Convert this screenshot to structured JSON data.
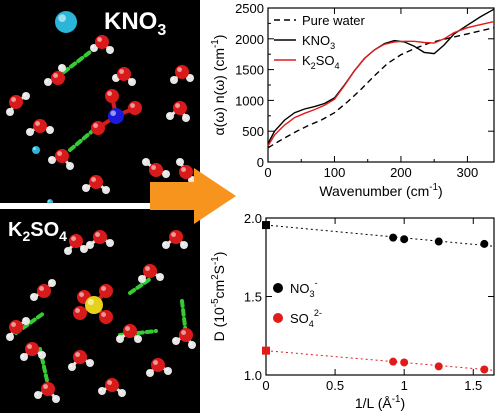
{
  "panels": {
    "top_label_main": "KNO",
    "top_label_sub": "3",
    "bottom_label_a": "K",
    "bottom_label_a_sub": "2",
    "bottom_label_b": "SO",
    "bottom_label_b_sub": "4"
  },
  "colors": {
    "oxygen": "#d91a1a",
    "hydrogen": "#e6e6e6",
    "nitrogen": "#1a1ad9",
    "sulfur": "#e6d21a",
    "potassium": "#2bb5d9",
    "hbond": "#33cc33",
    "arrow": "#f7941d",
    "pure_water": "#000000",
    "kno3": "#000000",
    "k2so4": "#e31a1a",
    "no3_points": "#000000",
    "so4_points": "#e31a1a"
  },
  "chart_data": [
    {
      "type": "line",
      "xlabel": "Wavenumber (cm",
      "xlabel_sup": "-1",
      "xlabel_end": ")",
      "ylabel": "α(ω) n(ω) (cm",
      "ylabel_sup": "-1",
      "ylabel_end": ")",
      "xlim": [
        0,
        340
      ],
      "ylim": [
        0,
        2500
      ],
      "xticks": [
        "0",
        "100",
        "200",
        "300"
      ],
      "yticks": [
        "0",
        "500",
        "1000",
        "1500",
        "2000",
        "2500"
      ],
      "legend_position": "top-left",
      "series": [
        {
          "name": "Pure water",
          "legend_text": "Pure water",
          "style": "dashed",
          "color": "#000000",
          "x": [
            0,
            20,
            40,
            60,
            80,
            100,
            120,
            140,
            160,
            180,
            200,
            220,
            240,
            260,
            280,
            300,
            320,
            340
          ],
          "y": [
            230,
            360,
            480,
            590,
            680,
            800,
            980,
            1180,
            1400,
            1600,
            1740,
            1840,
            1920,
            1980,
            2030,
            2080,
            2130,
            2180
          ]
        },
        {
          "name": "KNO3",
          "legend_text": "KNO",
          "legend_sub": "3",
          "style": "solid",
          "color": "#000000",
          "x": [
            0,
            10,
            25,
            40,
            55,
            70,
            85,
            100,
            115,
            130,
            145,
            160,
            175,
            190,
            205,
            220,
            235,
            250,
            265,
            280,
            300,
            320,
            340
          ],
          "y": [
            300,
            500,
            680,
            800,
            860,
            900,
            950,
            1040,
            1250,
            1480,
            1680,
            1820,
            1920,
            1970,
            1950,
            1880,
            1780,
            1760,
            1900,
            2080,
            2220,
            2360,
            2480
          ]
        },
        {
          "name": "K2SO4",
          "legend_text": "K",
          "legend_sub": "2",
          "legend_text2": "SO",
          "legend_sub2": "4",
          "style": "solid",
          "color": "#e31a1a",
          "x": [
            0,
            10,
            25,
            40,
            55,
            70,
            85,
            100,
            115,
            130,
            145,
            160,
            175,
            190,
            205,
            220,
            235,
            250,
            265,
            280,
            300,
            320,
            340
          ],
          "y": [
            260,
            440,
            600,
            720,
            790,
            850,
            920,
            1020,
            1240,
            1480,
            1680,
            1820,
            1910,
            1950,
            1960,
            1960,
            1940,
            1930,
            2000,
            2100,
            2180,
            2230,
            2280
          ]
        }
      ]
    },
    {
      "type": "scatter",
      "xlabel": "1/L (Å",
      "xlabel_sup": "-1",
      "xlabel_end": ")",
      "ylabel": "D (10",
      "ylabel_sup1": "-5",
      "ylabel_mid": "cm",
      "ylabel_sup2": "2",
      "ylabel_mid2": "S",
      "ylabel_sup3": "-1",
      "ylabel_end": ")",
      "xlim": [
        0,
        1.65
      ],
      "ylim": [
        1.0,
        2.0
      ],
      "xticks": [
        "0",
        "0.5",
        "1",
        "1.5"
      ],
      "yticks": [
        "1.0",
        "1.5",
        "2.0"
      ],
      "legend_position": "middle-left",
      "series": [
        {
          "name": "NO3-",
          "legend_text": "NO",
          "legend_sub": "3",
          "legend_sup": "-",
          "color": "#000000",
          "x": [
            0.92,
            1.0,
            1.25,
            1.58
          ],
          "y": [
            1.875,
            1.865,
            1.85,
            1.835
          ],
          "extrapolated": {
            "x": 0,
            "y": 1.955
          },
          "fit": {
            "x": [
              0,
              1.65
            ],
            "y": [
              1.955,
              1.82
            ]
          }
        },
        {
          "name": "SO42-",
          "legend_text": "SO",
          "legend_sub": "4",
          "legend_sup": "2-",
          "color": "#e31a1a",
          "x": [
            0.92,
            1.0,
            1.25,
            1.58
          ],
          "y": [
            1.085,
            1.08,
            1.055,
            1.035
          ],
          "extrapolated": {
            "x": 0,
            "y": 1.155
          },
          "fit": {
            "x": [
              0,
              1.65
            ],
            "y": [
              1.155,
              1.03
            ]
          }
        }
      ]
    }
  ]
}
